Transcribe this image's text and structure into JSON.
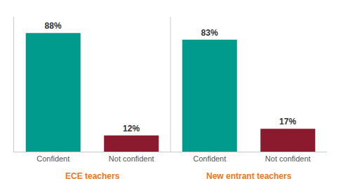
{
  "chart_data": {
    "type": "bar",
    "categories": [
      "Confident",
      "Not confident",
      "Confident",
      "Not confident"
    ],
    "category_groups": [
      "ECE teachers",
      "ECE teachers",
      "New entrant teachers",
      "New entrant teachers"
    ],
    "values": [
      88,
      12,
      83,
      17
    ],
    "value_labels": [
      "88%",
      "12%",
      "83%",
      "17%"
    ],
    "colors": [
      "#009B8D",
      "#8B1A2E",
      "#009B8D",
      "#8B1A2E"
    ],
    "ylim": [
      0,
      100
    ],
    "grid": false,
    "data_labels": true,
    "tick_labels": "x"
  }
}
